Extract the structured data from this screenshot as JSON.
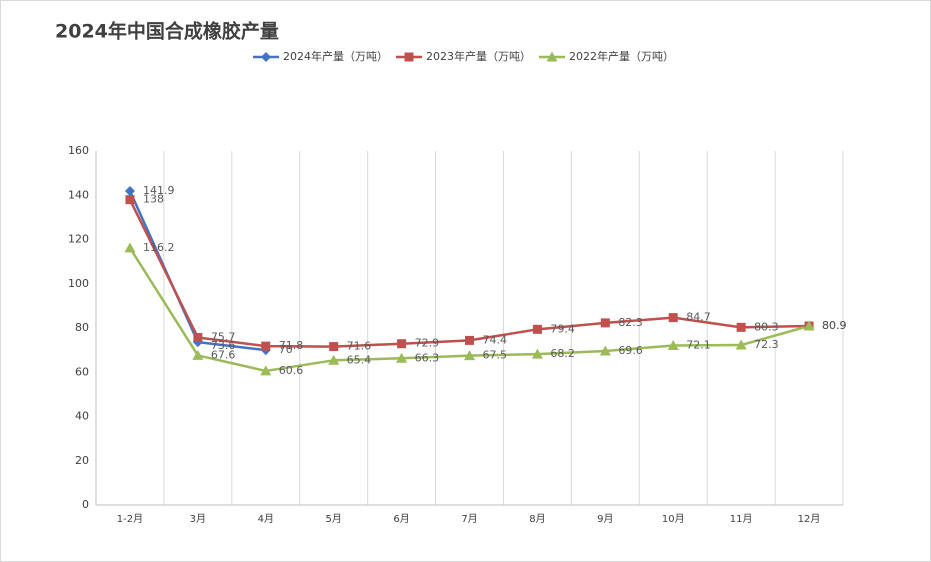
{
  "chart_data": {
    "type": "line",
    "title": "2024年中国合成橡胶产量",
    "categories": [
      "1-2月",
      "3月",
      "4月",
      "5月",
      "6月",
      "7月",
      "8月",
      "9月",
      "10月",
      "11月",
      "12月"
    ],
    "series": [
      {
        "name": "2024年产量（万吨）",
        "color": "#4472c4",
        "marker": "diamond",
        "values": [
          141.9,
          73.6,
          70,
          null,
          null,
          null,
          null,
          null,
          null,
          null,
          null
        ]
      },
      {
        "name": "2023年产量（万吨）",
        "color": "#c0504d",
        "marker": "square",
        "values": [
          138,
          75.7,
          71.8,
          71.6,
          72.9,
          74.4,
          79.4,
          82.3,
          84.7,
          80.3,
          80.9
        ]
      },
      {
        "name": "2022年产量（万吨）",
        "color": "#9bbb59",
        "marker": "triangle",
        "values": [
          116.2,
          67.6,
          60.6,
          65.4,
          66.3,
          67.5,
          68.2,
          69.6,
          72.1,
          72.3,
          80.9
        ]
      }
    ],
    "ylim": [
      0,
      160
    ],
    "yticks": [
      0,
      20,
      40,
      60,
      80,
      100,
      120,
      140,
      160
    ],
    "grid": true,
    "legend": "top"
  }
}
